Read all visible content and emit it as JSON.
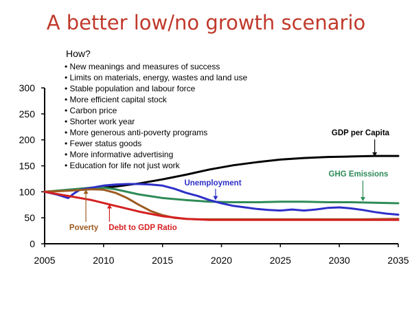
{
  "title": "A better low/no growth scenario",
  "colors": {
    "title": "#c0392b",
    "gdp": "#000000",
    "ghg": "#2e8b57",
    "unemployment": "#2d2fc7",
    "poverty": "#9c5a1f",
    "debt": "#d42020"
  },
  "how": {
    "heading": "How?",
    "items": [
      "New meanings and measures of success",
      "Limits on materials, energy, wastes and land use",
      "Stable population and labour force",
      "More efficient capital stock",
      "Carbon price",
      "Shorter work year",
      "More generous anti-poverty programs",
      "Fewer status goods",
      "More informative advertising",
      "Education for life not just work"
    ]
  },
  "chart_data": {
    "type": "line",
    "title": "",
    "xlabel": "",
    "ylabel": "",
    "xlim": [
      2005,
      2035
    ],
    "ylim": [
      0,
      300
    ],
    "xticks": [
      2005,
      2010,
      2015,
      2020,
      2025,
      2030,
      2035
    ],
    "yticks": [
      0,
      50,
      100,
      150,
      200,
      250,
      300
    ],
    "grid": false,
    "legend": "none",
    "series": [
      {
        "name": "GDP per Capita",
        "color_key": "gdp",
        "x": [
          2005,
          2007,
          2009,
          2011,
          2013,
          2015,
          2017,
          2019,
          2021,
          2023,
          2025,
          2027,
          2029,
          2031,
          2033,
          2035
        ],
        "y": [
          100,
          103,
          106,
          110,
          116,
          124,
          133,
          143,
          151,
          157,
          162,
          165,
          167,
          168,
          169,
          169
        ]
      },
      {
        "name": "GHG Emissions",
        "color_key": "ghg",
        "x": [
          2005,
          2007,
          2009,
          2010,
          2011,
          2013,
          2015,
          2017,
          2019,
          2021,
          2023,
          2025,
          2027,
          2029,
          2031,
          2033,
          2035
        ],
        "y": [
          100,
          104,
          108,
          108,
          105,
          95,
          88,
          84,
          81,
          80,
          80,
          81,
          81,
          80,
          80,
          79,
          78
        ]
      },
      {
        "name": "Unemployment",
        "color_key": "unemployment",
        "x": [
          2005,
          2006,
          2007,
          2007.5,
          2008,
          2009,
          2010,
          2011,
          2012,
          2013,
          2014,
          2015,
          2016,
          2017,
          2018,
          2019,
          2020,
          2021,
          2022,
          2023,
          2024,
          2025,
          2026,
          2027,
          2028,
          2029,
          2030,
          2031,
          2032,
          2033,
          2034,
          2035
        ],
        "y": [
          100,
          95,
          88,
          97,
          104,
          108,
          112,
          114,
          115,
          115,
          114,
          112,
          106,
          98,
          92,
          84,
          78,
          73,
          70,
          67,
          65,
          64,
          66,
          64,
          66,
          69,
          70,
          68,
          65,
          61,
          58,
          56
        ]
      },
      {
        "name": "Poverty",
        "color_key": "poverty",
        "x": [
          2005,
          2007,
          2009,
          2010,
          2011,
          2012,
          2013,
          2014,
          2015,
          2016,
          2017,
          2018,
          2020,
          2022,
          2025,
          2028,
          2030,
          2032,
          2035
        ],
        "y": [
          100,
          102,
          105,
          104,
          98,
          88,
          75,
          63,
          55,
          50,
          48,
          47,
          47,
          47,
          47,
          47,
          47,
          47,
          48
        ]
      },
      {
        "name": "Debt to GDP Ratio",
        "color_key": "debt",
        "x": [
          2005,
          2007,
          2009,
          2011,
          2013,
          2015,
          2017,
          2019,
          2021,
          2023,
          2025,
          2030,
          2035
        ],
        "y": [
          100,
          92,
          84,
          73,
          62,
          53,
          48,
          46,
          46,
          46,
          46,
          46,
          46
        ]
      }
    ],
    "annotations": [
      {
        "text": "GDP per Capita",
        "series_key": "gdp",
        "arrow_x": 2033,
        "arrow_to": 168
      },
      {
        "text": "GHG Emissions",
        "series_key": "ghg",
        "arrow_x": 2032,
        "arrow_to": 82
      },
      {
        "text": "Unemployment",
        "series_key": "unemployment",
        "arrow_x": 2019.5,
        "arrow_to": 84
      },
      {
        "text": "Poverty",
        "series_key": "poverty",
        "arrow_x": 2008.5,
        "arrow_to": 104
      },
      {
        "text": "Debt to GDP Ratio",
        "series_key": "debt",
        "arrow_x": 2010.5,
        "arrow_to": 76
      }
    ]
  }
}
